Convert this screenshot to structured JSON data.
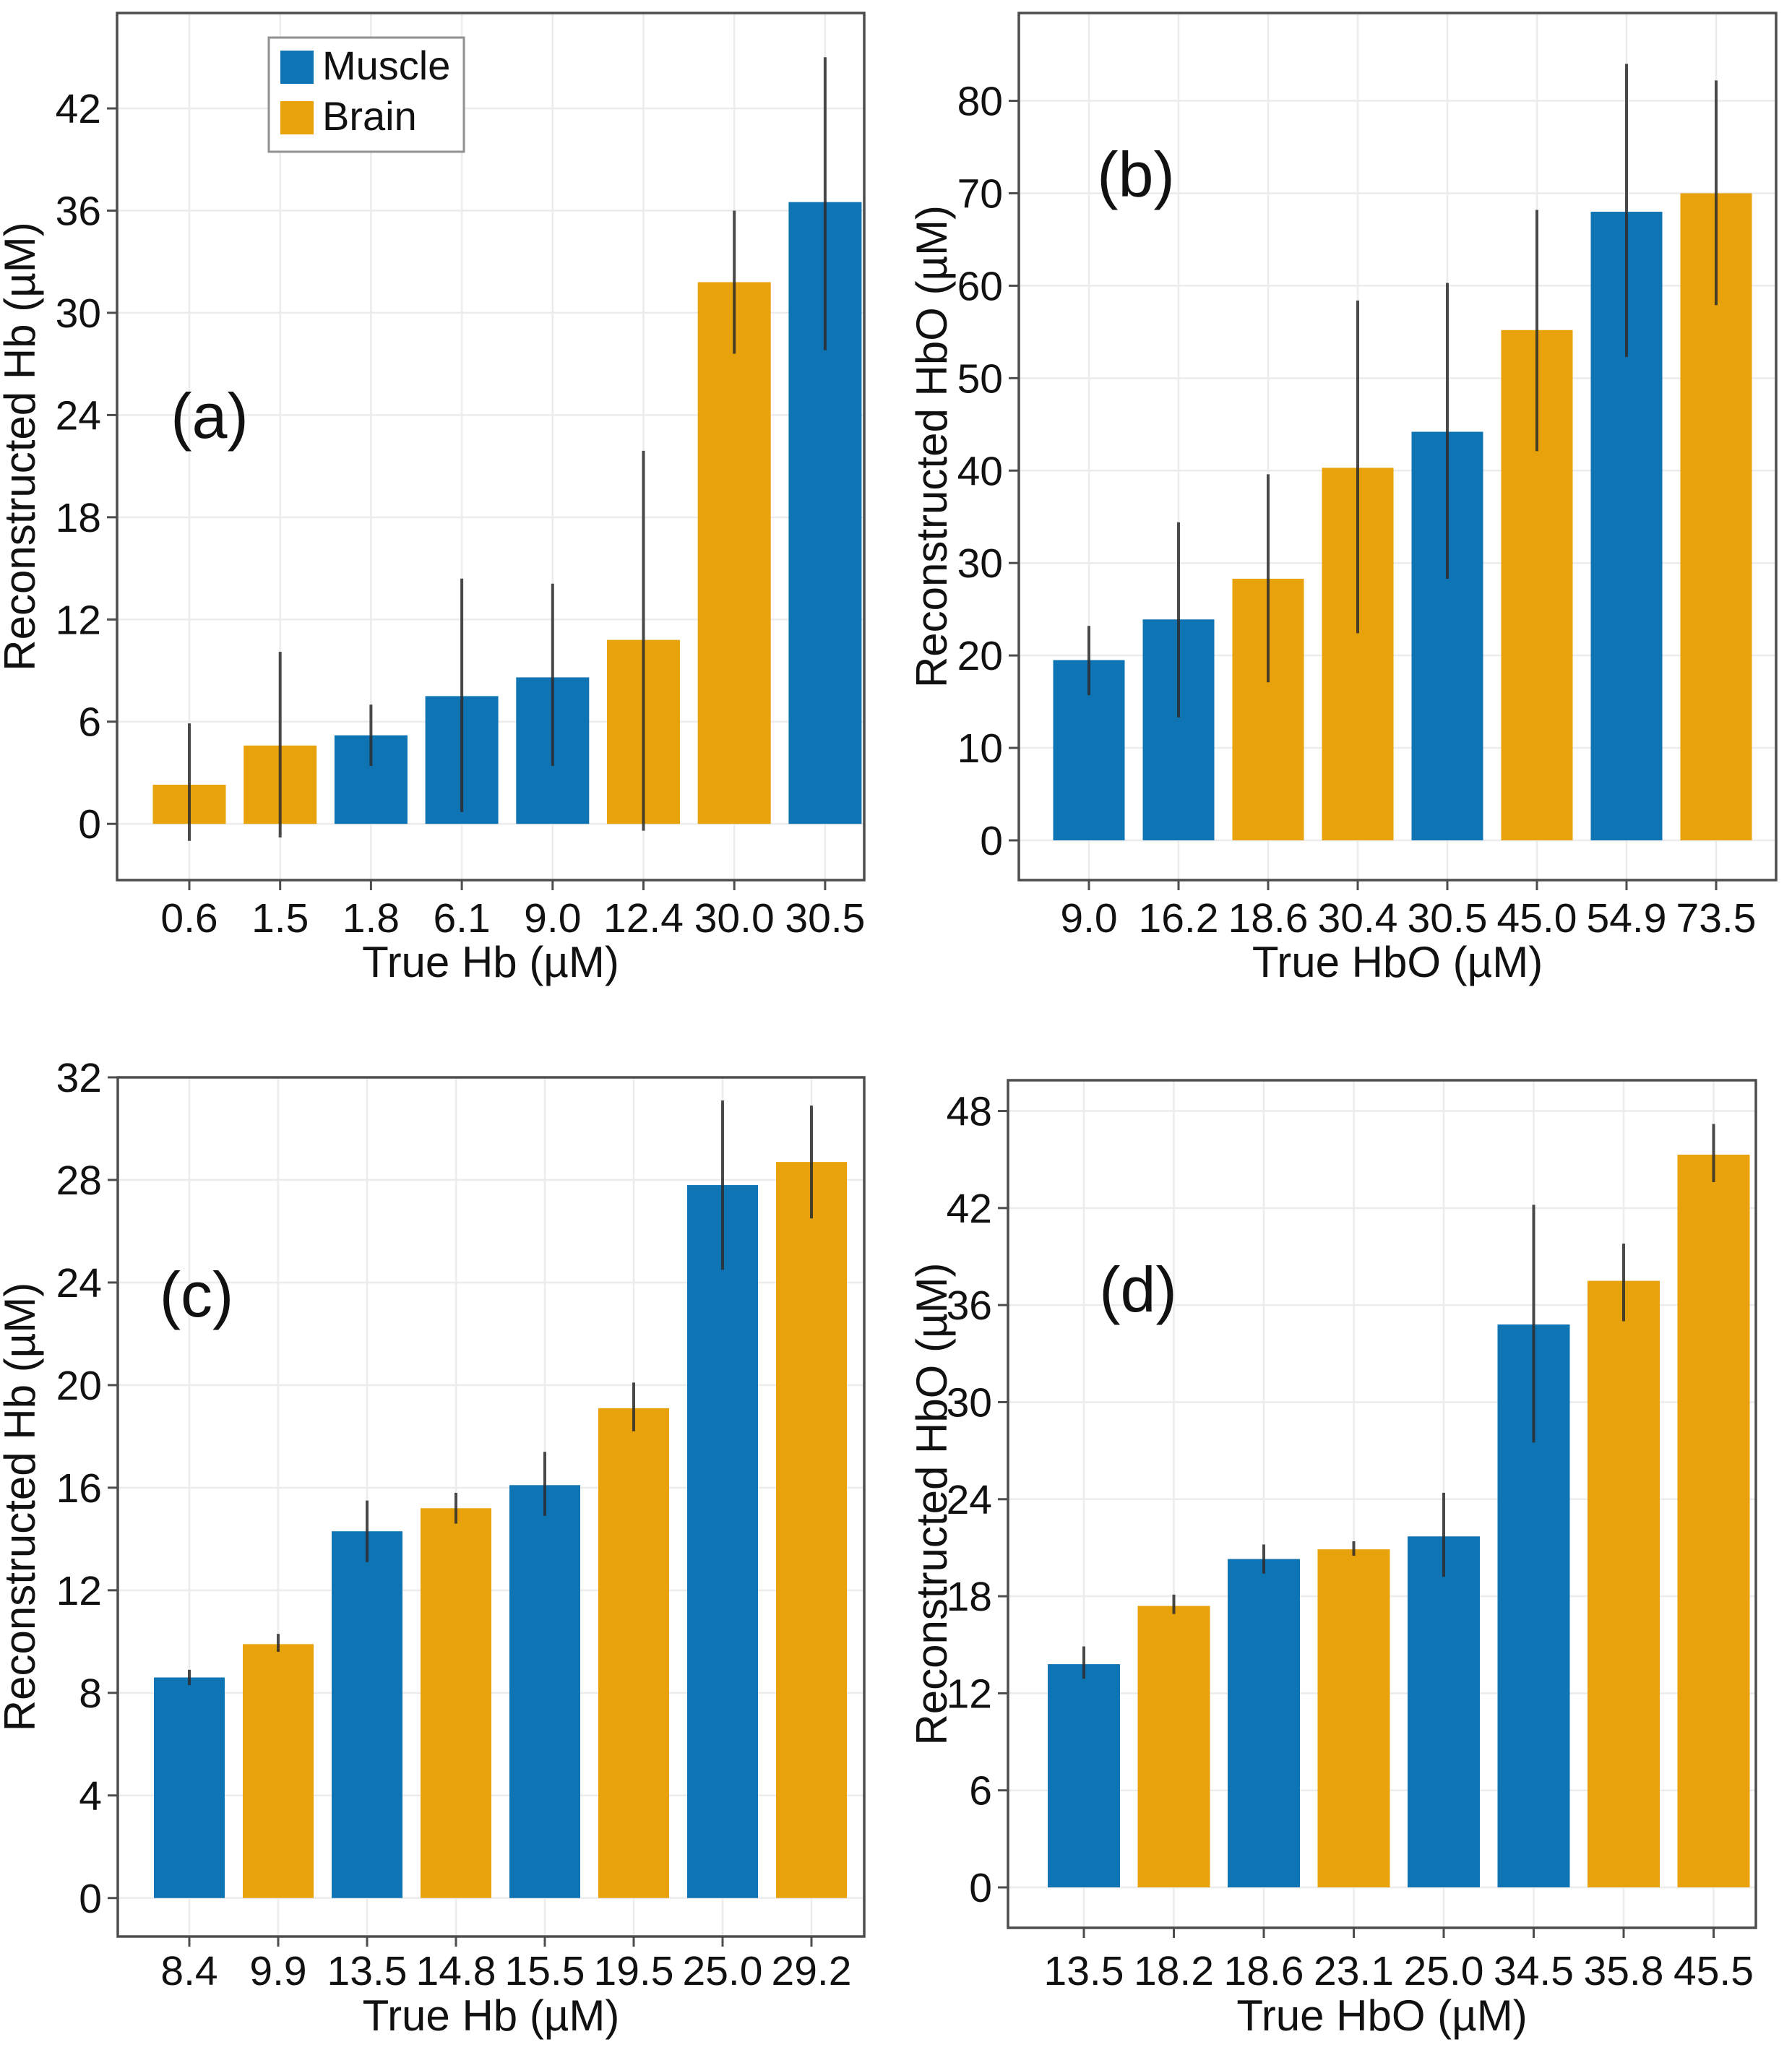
{
  "style": {
    "muscle_color": "#0f74b3",
    "brain_color": "#e8a20b",
    "error_bar_color": "#2b2b2b",
    "grid_color": "#ececec",
    "axis_border_color": "#4d4d4d",
    "tick_color": "#4d4d4d",
    "text_color": "#111111",
    "background": "#ffffff",
    "legend_border_color": "#919191",
    "legend_fill": "#ffffff"
  },
  "legend": {
    "entries": [
      {
        "label": "Muscle",
        "group": "Muscle"
      },
      {
        "label": "Brain",
        "group": "Brain"
      }
    ]
  },
  "chart_data": [
    {
      "type": "bar",
      "panel_label": "(a)",
      "xlabel": "True Hb (µM)",
      "ylabel": "Reconstructed Hb (µM)",
      "categories": [
        "0.6",
        "1.5",
        "1.8",
        "6.1",
        "9.0",
        "12.4",
        "30.0",
        "30.5"
      ],
      "groups": [
        "Brain",
        "Brain",
        "Muscle",
        "Muscle",
        "Muscle",
        "Brain",
        "Brain",
        "Muscle"
      ],
      "values": [
        2.3,
        4.6,
        5.2,
        7.5,
        8.6,
        10.8,
        31.8,
        36.5
      ],
      "error_low": [
        -1.0,
        -0.8,
        3.4,
        0.7,
        3.4,
        -0.4,
        27.6,
        27.8
      ],
      "error_high": [
        5.9,
        10.1,
        7.0,
        14.4,
        14.1,
        21.9,
        36.0,
        45.0
      ],
      "yticks": [
        0,
        6,
        12,
        18,
        24,
        30,
        36,
        42
      ],
      "ylim": [
        -3.3,
        47.6
      ],
      "grid": true,
      "legend_visible": true
    },
    {
      "type": "bar",
      "panel_label": "(b)",
      "xlabel": "True HbO (µM)",
      "ylabel": "Reconstructed HbO (µM)",
      "categories": [
        "9.0",
        "16.2",
        "18.6",
        "30.4",
        "30.5",
        "45.0",
        "54.9",
        "73.5"
      ],
      "groups": [
        "Muscle",
        "Muscle",
        "Brain",
        "Brain",
        "Muscle",
        "Brain",
        "Muscle",
        "Brain"
      ],
      "values": [
        19.5,
        23.9,
        28.3,
        40.3,
        44.2,
        55.2,
        68.0,
        70.0
      ],
      "error_low": [
        15.7,
        13.3,
        17.1,
        22.4,
        28.3,
        42.1,
        52.3,
        57.9
      ],
      "error_high": [
        23.2,
        34.4,
        39.6,
        58.4,
        60.3,
        68.2,
        84.0,
        82.2
      ],
      "yticks": [
        0,
        10,
        20,
        30,
        40,
        50,
        60,
        70,
        80
      ],
      "ylim": [
        -4.3,
        89.5
      ],
      "grid": true,
      "legend_visible": false
    },
    {
      "type": "bar",
      "panel_label": "(c)",
      "xlabel": "True Hb (µM)",
      "ylabel": "Reconstructed Hb (µM)",
      "categories": [
        "8.4",
        "9.9",
        "13.5",
        "14.8",
        "15.5",
        "19.5",
        "25.0",
        "29.2"
      ],
      "groups": [
        "Muscle",
        "Brain",
        "Muscle",
        "Brain",
        "Muscle",
        "Brain",
        "Muscle",
        "Brain"
      ],
      "values": [
        8.6,
        9.9,
        14.3,
        15.2,
        16.1,
        19.1,
        27.8,
        28.7
      ],
      "error_low": [
        8.3,
        9.6,
        13.1,
        14.6,
        14.9,
        18.2,
        24.5,
        26.5
      ],
      "error_high": [
        8.9,
        10.3,
        15.5,
        15.8,
        17.4,
        20.1,
        31.1,
        30.9
      ],
      "yticks": [
        0,
        4,
        8,
        12,
        16,
        20,
        24,
        28,
        32
      ],
      "ylim": [
        -1.5,
        32.0
      ],
      "grid": true,
      "legend_visible": false
    },
    {
      "type": "bar",
      "panel_label": "(d)",
      "xlabel": "True HbO (µM)",
      "ylabel": "Reconstructed HbO (µM)",
      "categories": [
        "13.5",
        "18.2",
        "18.6",
        "23.1",
        "25.0",
        "34.5",
        "35.8",
        "45.5"
      ],
      "groups": [
        "Muscle",
        "Brain",
        "Muscle",
        "Brain",
        "Muscle",
        "Muscle",
        "Brain",
        "Brain"
      ],
      "values": [
        13.8,
        17.4,
        20.3,
        20.9,
        21.7,
        34.8,
        37.5,
        45.3
      ],
      "error_low": [
        12.9,
        16.9,
        19.4,
        20.5,
        19.2,
        27.5,
        35.0,
        43.6
      ],
      "error_high": [
        14.9,
        18.1,
        21.2,
        21.4,
        24.4,
        42.2,
        39.8,
        47.2
      ],
      "yticks": [
        0,
        6,
        12,
        18,
        24,
        30,
        36,
        42,
        48
      ],
      "ylim": [
        -2.5,
        49.9
      ],
      "grid": true,
      "legend_visible": false
    }
  ]
}
